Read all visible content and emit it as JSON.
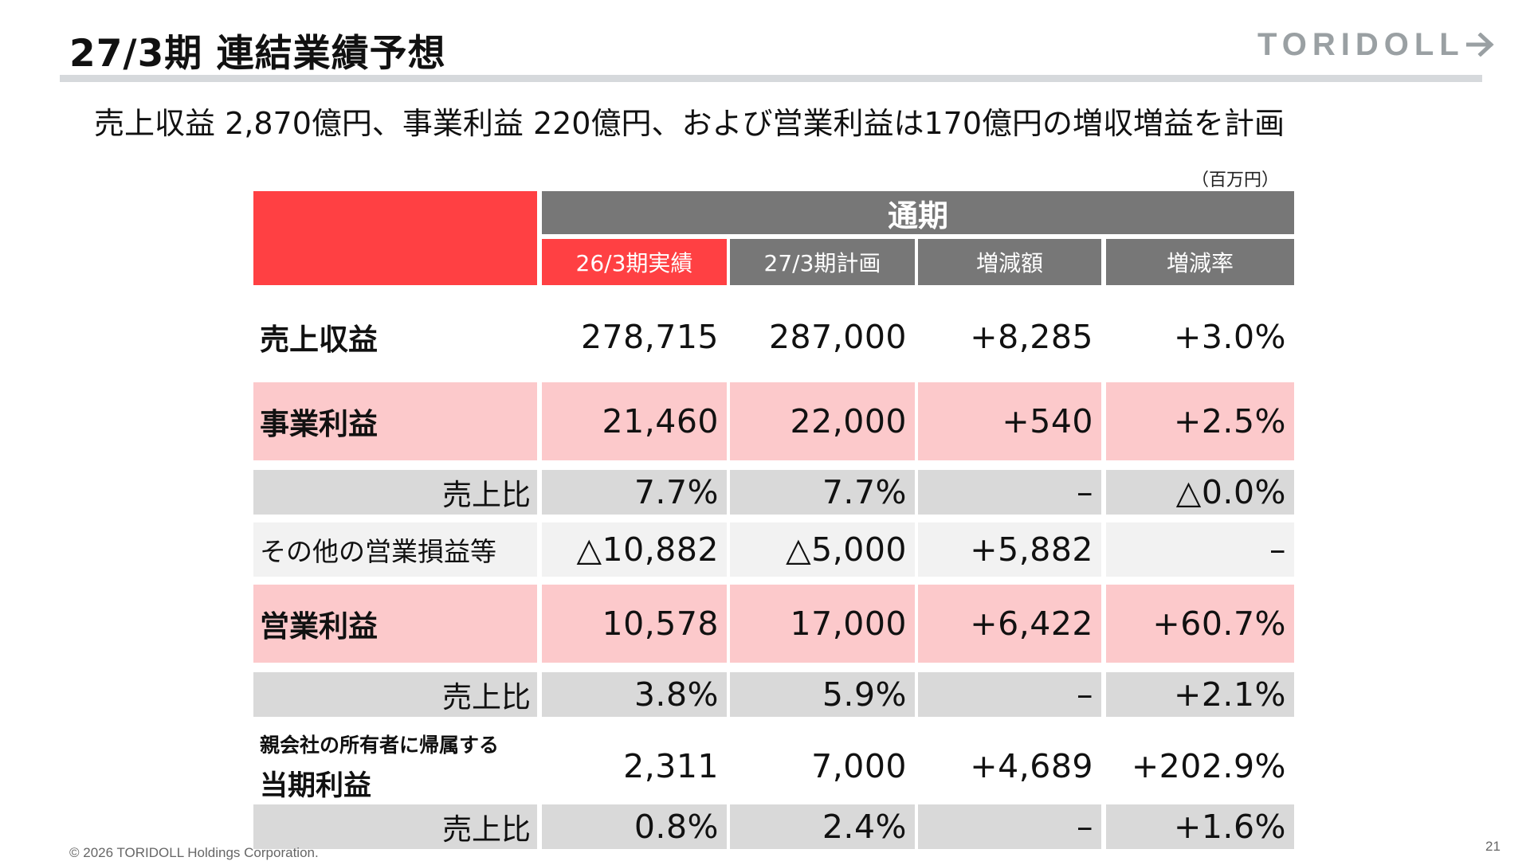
{
  "slide": {
    "title": "27/3期 連結業績予想",
    "logo_text": "TORIDOLL",
    "subtitle": "売上収益 2,870億円、事業利益 220億円、および営業利益は170億円の増収増益を計画",
    "unit_note": "（百万円）",
    "footer": "© 2026 TORIDOLL Holdings Corporation.",
    "page_number": "21"
  },
  "table": {
    "group_header": "通期",
    "columns": [
      "26/3期実績",
      "27/3期計画",
      "増減額",
      "増減率"
    ],
    "rows": [
      {
        "label": "売上収益",
        "values": [
          "278,715",
          "287,000",
          "+8,285",
          "+3.0%"
        ]
      },
      {
        "label": "事業利益",
        "values": [
          "21,460",
          "22,000",
          "+540",
          "+2.5%"
        ]
      },
      {
        "label": "売上比",
        "values": [
          "7.7%",
          "7.7%",
          "–",
          "△0.0%"
        ]
      },
      {
        "label": "その他の営業損益等",
        "values": [
          "△10,882",
          "△5,000",
          "+5,882",
          "–"
        ]
      },
      {
        "label": "営業利益",
        "values": [
          "10,578",
          "17,000",
          "+6,422",
          "+60.7%"
        ]
      },
      {
        "label": "売上比",
        "values": [
          "3.8%",
          "5.9%",
          "–",
          "+2.1%"
        ]
      },
      {
        "label_line1": "親会社の所有者に帰属する",
        "label_line2": "当期利益",
        "values": [
          "2,311",
          "7,000",
          "+4,689",
          "+202.9%"
        ]
      },
      {
        "label": "売上比",
        "values": [
          "0.8%",
          "2.4%",
          "–",
          "+1.6%"
        ]
      }
    ]
  },
  "colors": {
    "accent_red": "#ff4043",
    "header_gray": "#777777",
    "highlight_pink": "#fcc9cb",
    "sub_gray": "#d9d9d9",
    "light_gray": "#f2f2f2"
  }
}
